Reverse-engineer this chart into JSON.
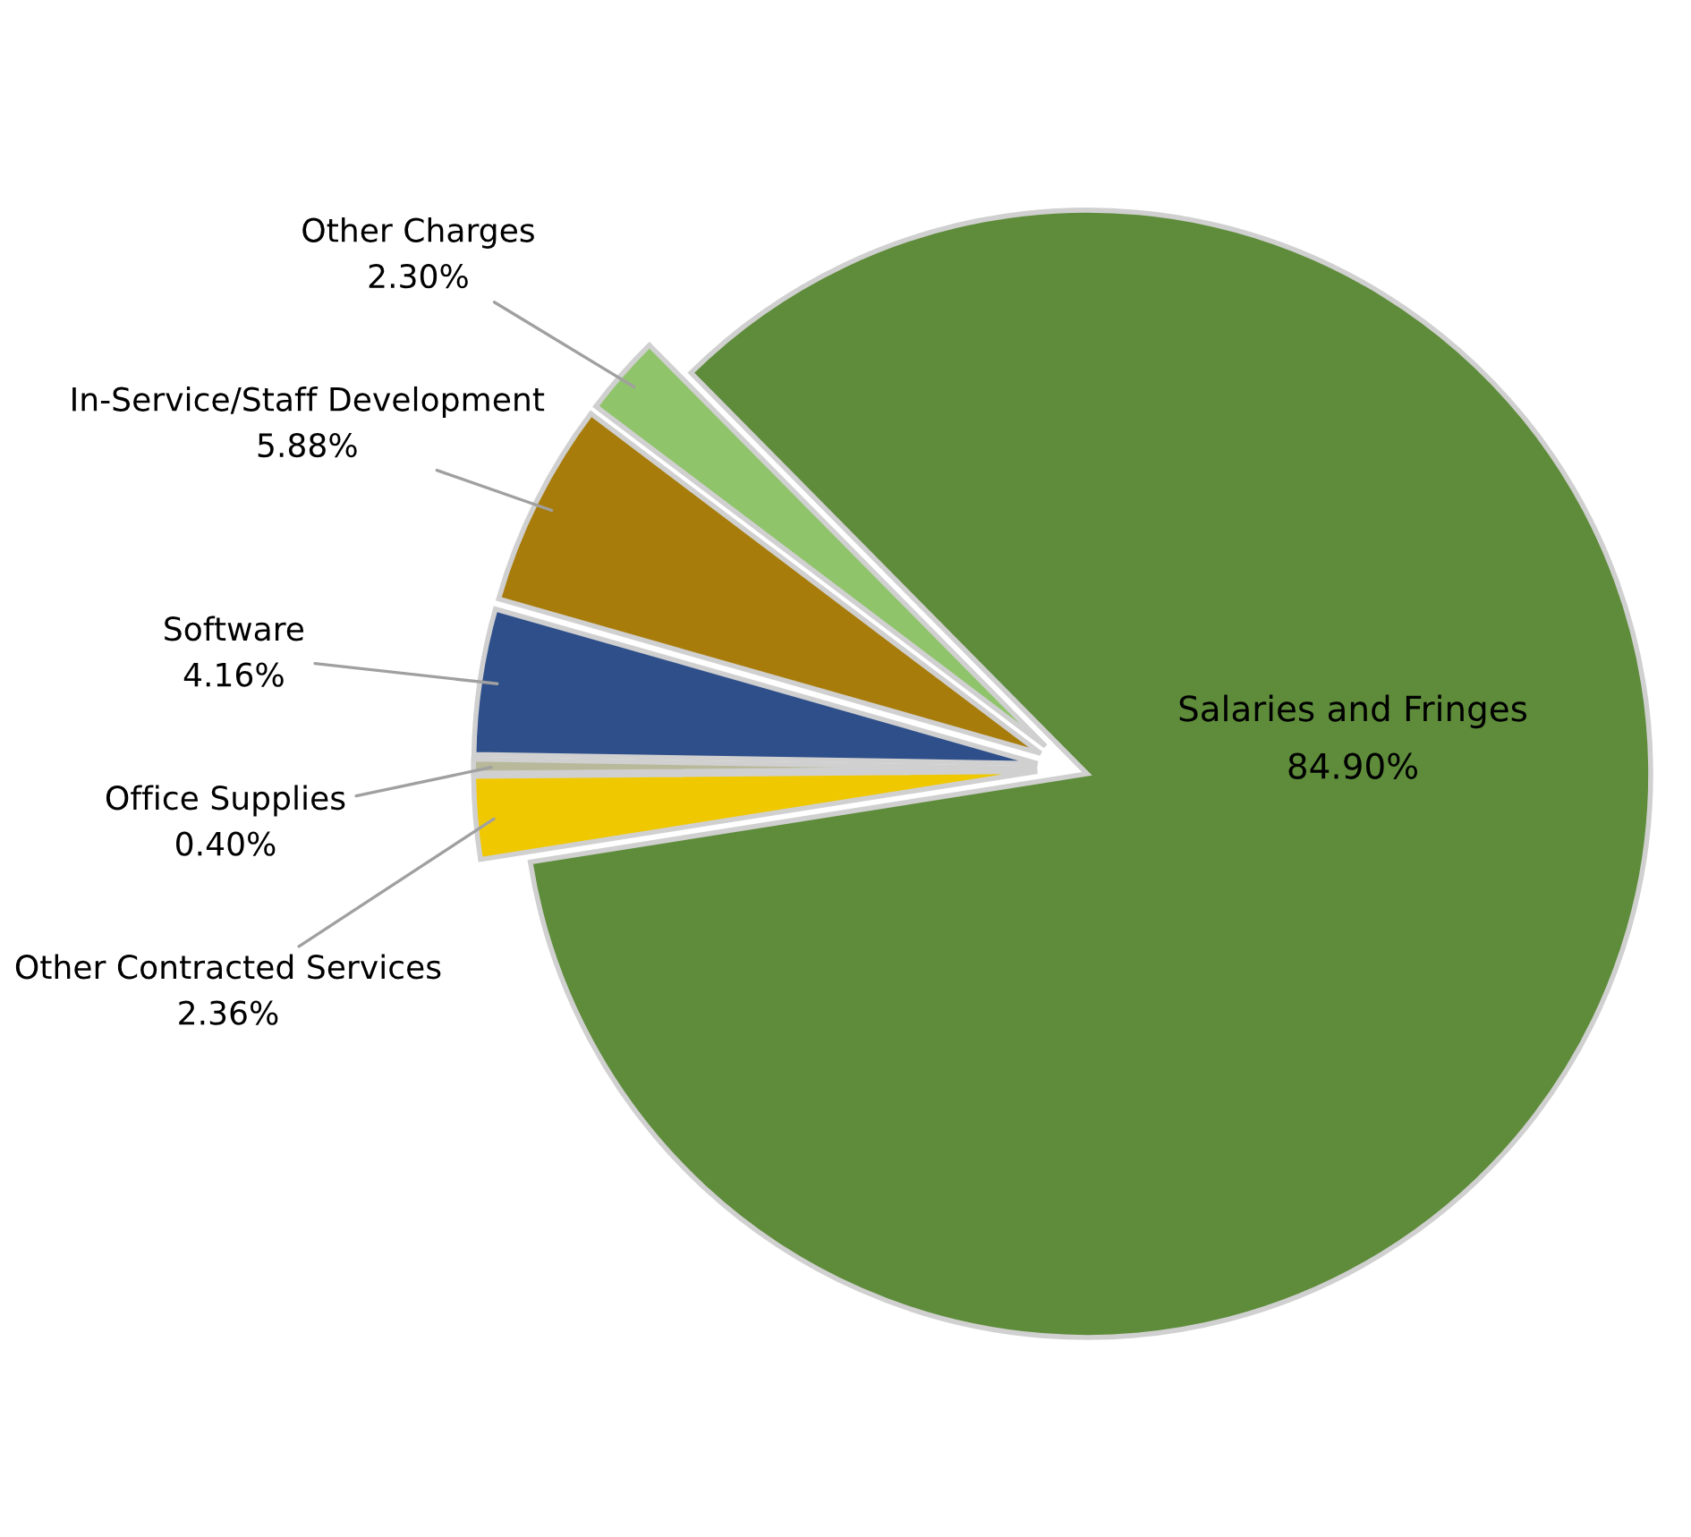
{
  "chart_data": {
    "type": "pie",
    "categories": [
      "Salaries and Fringes",
      "Other Charges",
      "In-Service/Staff Development",
      "Software",
      "Office Supplies",
      "Other Contracted Services"
    ],
    "values": [
      84.9,
      2.3,
      5.88,
      4.16,
      0.4,
      2.36
    ],
    "value_labels": [
      "84.90%",
      "2.30%",
      "5.88%",
      "4.16%",
      "0.40%",
      "2.36%"
    ],
    "colors": [
      "#5e8c3a",
      "#8fc46a",
      "#a87c0a",
      "#2e4f8a",
      "#b8b89a",
      "#f0c800"
    ],
    "legend": false
  }
}
